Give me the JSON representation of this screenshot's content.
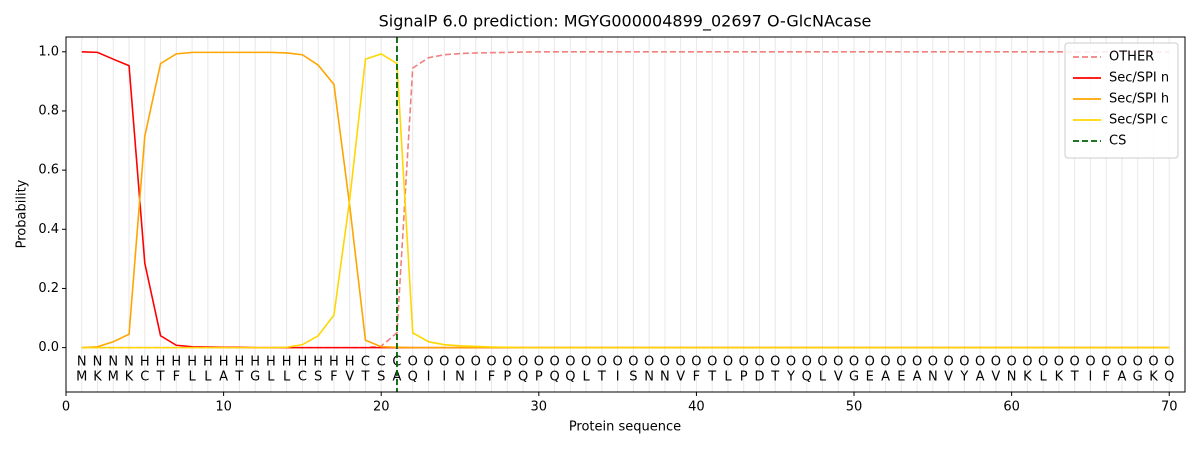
{
  "chart_data": {
    "type": "line",
    "title": "SignalP 6.0 prediction: MGYG000004899_02697 O-GlcNAcase",
    "xlabel": "Protein sequence",
    "ylabel": "Probability",
    "xlim": [
      0,
      71
    ],
    "ylim": [
      -0.15,
      1.05
    ],
    "xticks": [
      0,
      10,
      20,
      30,
      40,
      50,
      60,
      70
    ],
    "yticks": [
      {
        "value": 0,
        "label": "0.0"
      },
      {
        "value": 0.2,
        "label": "0.2"
      },
      {
        "value": 0.4,
        "label": "0.4"
      },
      {
        "value": 0.6,
        "label": "0.6"
      },
      {
        "value": 0.8,
        "label": "0.8"
      },
      {
        "value": 1,
        "label": "1.0"
      }
    ],
    "legend": "upper right",
    "x": [
      1,
      2,
      3,
      4,
      5,
      6,
      7,
      8,
      9,
      10,
      11,
      12,
      13,
      14,
      15,
      16,
      17,
      18,
      19,
      20,
      21,
      22,
      23,
      24,
      25,
      26,
      27,
      28,
      29,
      30,
      31,
      32,
      33,
      34,
      35,
      36,
      37,
      38,
      39,
      40,
      41,
      42,
      43,
      44,
      45,
      46,
      47,
      48,
      49,
      50,
      51,
      52,
      53,
      54,
      55,
      56,
      57,
      58,
      59,
      60,
      61,
      62,
      63,
      64,
      65,
      66,
      67,
      68,
      69,
      70
    ],
    "sequence": [
      "M",
      "K",
      "M",
      "K",
      "C",
      "T",
      "F",
      "L",
      "L",
      "A",
      "T",
      "G",
      "L",
      "L",
      "C",
      "S",
      "F",
      "V",
      "T",
      "S",
      "A",
      "Q",
      "I",
      "I",
      "N",
      "I",
      "F",
      "P",
      "Q",
      "P",
      "Q",
      "Q",
      "L",
      "T",
      "I",
      "S",
      "N",
      "N",
      "V",
      "F",
      "T",
      "L",
      "P",
      "D",
      "T",
      "Y",
      "Q",
      "L",
      "V",
      "G",
      "E",
      "A",
      "E",
      "A",
      "N",
      "V",
      "Y",
      "A",
      "V",
      "N",
      "K",
      "L",
      "K",
      "T",
      "I",
      "F",
      "A",
      "G",
      "K",
      "Q"
    ],
    "annotation": [
      "N",
      "N",
      "N",
      "N",
      "H",
      "H",
      "H",
      "H",
      "H",
      "H",
      "H",
      "H",
      "H",
      "H",
      "H",
      "H",
      "H",
      "H",
      "C",
      "C",
      "C",
      "O",
      "O",
      "O",
      "O",
      "O",
      "O",
      "O",
      "O",
      "O",
      "O",
      "O",
      "O",
      "O",
      "O",
      "O",
      "O",
      "O",
      "O",
      "O",
      "O",
      "O",
      "O",
      "O",
      "O",
      "O",
      "O",
      "O",
      "O",
      "O",
      "O",
      "O",
      "O",
      "O",
      "O",
      "O",
      "O",
      "O",
      "O",
      "O",
      "O",
      "O",
      "O",
      "O",
      "O",
      "O",
      "O",
      "O",
      "O",
      "O"
    ],
    "annotation_colors": {
      "N": "#ff0000",
      "H": "#ffa500",
      "C": "#ffd700",
      "O": "#808080"
    },
    "series": [
      {
        "name": "OTHER",
        "color": "#f08080",
        "dash": true,
        "values": [
          0,
          0,
          0,
          0,
          0,
          0,
          0,
          0,
          0,
          0,
          0,
          0,
          0,
          0,
          0,
          0,
          0,
          0,
          0,
          0.005,
          0.05,
          0.945,
          0.98,
          0.99,
          0.994,
          0.996,
          0.997,
          0.998,
          0.999,
          1,
          1,
          1,
          1,
          1,
          1,
          1,
          1,
          1,
          1,
          1,
          1,
          1,
          1,
          1,
          1,
          1,
          1,
          1,
          1,
          1,
          1,
          1,
          1,
          1,
          1,
          1,
          1,
          1,
          1,
          1,
          1,
          1,
          1,
          1,
          1,
          1,
          1,
          1,
          1,
          1
        ]
      },
      {
        "name": "Sec/SPI n",
        "color": "#ff0000",
        "values": [
          1,
          0.998,
          0.975,
          0.953,
          0.285,
          0.04,
          0.008,
          0.003,
          0.002,
          0.001,
          0.001,
          0,
          0,
          0,
          0,
          0,
          0,
          0,
          0,
          0,
          0,
          0,
          0,
          0,
          0,
          0,
          0,
          0,
          0,
          0,
          0,
          0,
          0,
          0,
          0,
          0,
          0,
          0,
          0,
          0,
          0,
          0,
          0,
          0,
          0,
          0,
          0,
          0,
          0,
          0,
          0,
          0,
          0,
          0,
          0,
          0,
          0,
          0,
          0,
          0,
          0,
          0,
          0,
          0,
          0,
          0,
          0,
          0,
          0,
          0
        ]
      },
      {
        "name": "Sec/SPI h",
        "color": "#ffa500",
        "values": [
          0,
          0.003,
          0.02,
          0.045,
          0.715,
          0.96,
          0.993,
          0.998,
          0.998,
          0.998,
          0.998,
          0.998,
          0.998,
          0.996,
          0.99,
          0.955,
          0.89,
          0.48,
          0.025,
          0.003,
          0.001,
          0,
          0,
          0,
          0,
          0,
          0,
          0,
          0,
          0,
          0,
          0,
          0,
          0,
          0,
          0,
          0,
          0,
          0,
          0,
          0,
          0,
          0,
          0,
          0,
          0,
          0,
          0,
          0,
          0,
          0,
          0,
          0,
          0,
          0,
          0,
          0,
          0,
          0,
          0,
          0,
          0,
          0,
          0,
          0,
          0,
          0,
          0,
          0,
          0
        ]
      },
      {
        "name": "Sec/SPI c",
        "color": "#ffd700",
        "values": [
          0,
          0,
          0,
          0,
          0,
          0,
          0,
          0,
          0,
          0,
          0,
          0,
          0,
          0.001,
          0.01,
          0.04,
          0.11,
          0.5,
          0.975,
          0.993,
          0.96,
          0.05,
          0.02,
          0.01,
          0.006,
          0.004,
          0.002,
          0.001,
          0,
          0,
          0,
          0,
          0,
          0,
          0,
          0,
          0,
          0,
          0,
          0,
          0,
          0,
          0,
          0,
          0,
          0,
          0,
          0,
          0,
          0,
          0,
          0,
          0,
          0,
          0,
          0,
          0,
          0,
          0,
          0,
          0,
          0,
          0,
          0,
          0,
          0,
          0,
          0,
          0,
          0
        ]
      }
    ],
    "cs": {
      "name": "CS",
      "x": 21,
      "color": "#006400"
    }
  }
}
